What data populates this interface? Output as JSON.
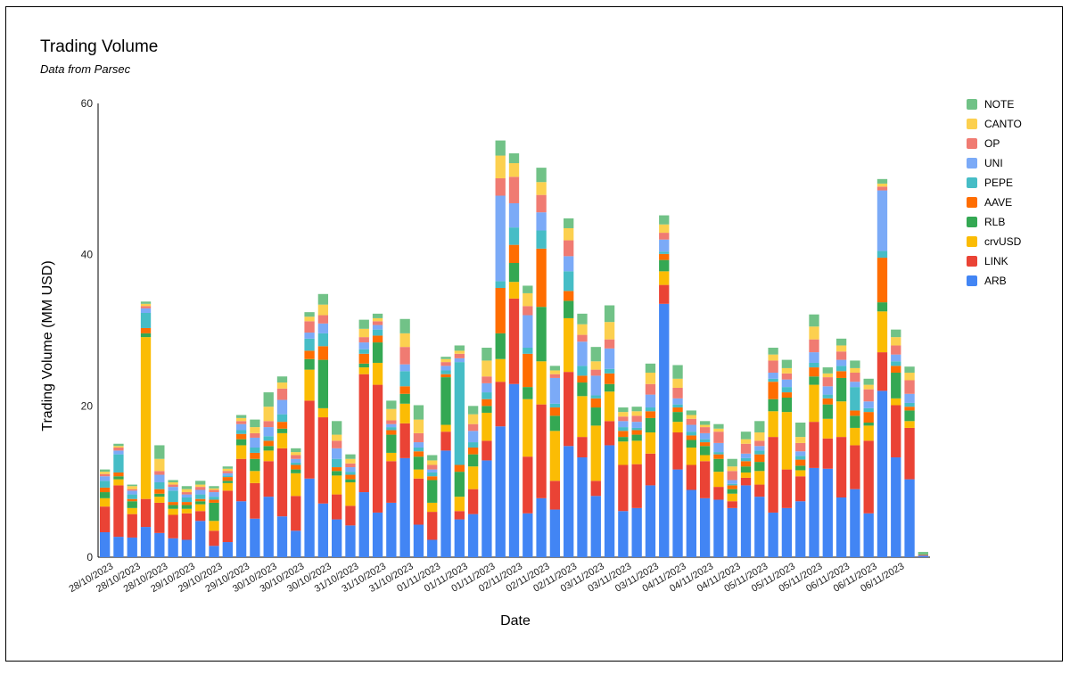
{
  "title": "Trading Volume",
  "subtitle": "Data from Parsec",
  "chart_data": {
    "type": "bar",
    "stacked": true,
    "title": "Trading Volume",
    "subtitle": "Data from Parsec",
    "xlabel": "Date",
    "ylabel": "Trading Volume (MM USD)",
    "ylim": [
      0,
      60
    ],
    "yticks": [
      0,
      20,
      40,
      60
    ],
    "grid": false,
    "legend_position": "right",
    "x_tick_labels": [
      "28/10/2023",
      "28/10/2023",
      "28/10/2023",
      "29/10/2023",
      "29/10/2023",
      "29/10/2023",
      "30/10/2023",
      "30/10/2023",
      "30/10/2023",
      "31/10/2023",
      "31/10/2023",
      "31/10/2023",
      "01/11/2023",
      "01/11/2023",
      "01/11/2023",
      "02/11/2023",
      "02/11/2023",
      "02/11/2023",
      "03/11/2023",
      "03/11/2023",
      "03/11/2023",
      "04/11/2023",
      "04/11/2023",
      "04/11/2023",
      "05/11/2023",
      "05/11/2023",
      "05/11/2023",
      "06/11/2023",
      "06/11/2023",
      "06/11/2023"
    ],
    "colors": {
      "ARB": "#4285f4",
      "LINK": "#ea4335",
      "crvUSD": "#fbbc04",
      "RLB": "#34a853",
      "AAVE": "#ff6d01",
      "PEPE": "#46bdc6",
      "UNI": "#7baaf7",
      "OP": "#f07b72",
      "CANTO": "#fcd04f",
      "NOTE": "#71c287"
    },
    "legend_order": [
      "NOTE",
      "CANTO",
      "OP",
      "UNI",
      "PEPE",
      "AAVE",
      "RLB",
      "crvUSD",
      "LINK",
      "ARB"
    ],
    "bar_count": 61,
    "series": [
      {
        "name": "ARB",
        "values": [
          3.3,
          2.7,
          2.6,
          4.0,
          3.2,
          2.5,
          2.3,
          4.8,
          1.5,
          2.0,
          7.4,
          5.1,
          8.0,
          5.4,
          3.5,
          10.4,
          7.1,
          5.0,
          4.2,
          8.6,
          5.9,
          7.2,
          13.1,
          4.3,
          2.3,
          14.1,
          5.0,
          5.7,
          12.8,
          17.3,
          22.9,
          5.8,
          7.8,
          6.3,
          14.7,
          13.2,
          8.1,
          14.8,
          6.1,
          6.5,
          9.5,
          33.5,
          11.6,
          8.9,
          7.8,
          7.6,
          6.5,
          9.5,
          8.0,
          5.9,
          6.5,
          7.4,
          11.8,
          11.7,
          7.9,
          9.0,
          5.8,
          22.0,
          13.2,
          10.3,
          0.2
        ]
      },
      {
        "name": "LINK",
        "values": [
          3.4,
          6.8,
          3.1,
          3.7,
          4.0,
          3.1,
          3.5,
          1.3,
          2.0,
          6.8,
          5.6,
          4.7,
          4.7,
          9.0,
          4.6,
          10.3,
          11.4,
          3.3,
          2.6,
          15.6,
          16.9,
          5.5,
          4.6,
          6.1,
          3.7,
          2.5,
          1.1,
          3.3,
          2.6,
          5.9,
          11.3,
          7.5,
          12.4,
          3.8,
          9.8,
          2.7,
          2.0,
          3.2,
          6.1,
          5.8,
          4.2,
          2.5,
          4.9,
          3.3,
          4.9,
          1.7,
          0.9,
          1.0,
          1.6,
          10.0,
          5.1,
          3.3,
          6.1,
          4.0,
          8.0,
          5.8,
          9.6,
          5.1,
          6.9,
          6.8,
          0.1
        ]
      },
      {
        "name": "crvUSD",
        "values": [
          1.1,
          0.8,
          0.8,
          21.4,
          0.8,
          0.8,
          0.6,
          0.9,
          1.3,
          1.0,
          1.8,
          1.6,
          1.4,
          2.0,
          3.0,
          4.1,
          1.2,
          2.5,
          3.1,
          0.9,
          2.9,
          1.1,
          2.6,
          1.2,
          1.2,
          0.9,
          1.9,
          3.0,
          3.7,
          3.0,
          2.2,
          7.6,
          5.7,
          6.6,
          7.1,
          5.4,
          7.3,
          3.9,
          3.1,
          3.1,
          2.8,
          1.8,
          1.4,
          2.3,
          0.8,
          2.0,
          1.0,
          0.7,
          1.8,
          3.4,
          7.6,
          0.8,
          4.9,
          2.6,
          4.7,
          2.3,
          2.0,
          5.4,
          0.9,
          0.9,
          0
        ]
      },
      {
        "name": "RLB",
        "values": [
          0.8,
          0.4,
          0.9,
          0.5,
          0.4,
          0.5,
          0.5,
          0.4,
          2.4,
          0.3,
          0.8,
          1.6,
          0.6,
          0.6,
          0.5,
          1.4,
          6.4,
          0.6,
          0.4,
          0.5,
          2.7,
          2.4,
          1.3,
          1.7,
          3.0,
          6.3,
          3.3,
          1.6,
          0.9,
          3.4,
          2.5,
          1.6,
          7.2,
          2.0,
          2.3,
          1.8,
          2.4,
          1.0,
          0.6,
          0.8,
          1.9,
          1.5,
          1.3,
          1.0,
          1.2,
          1.7,
          0.6,
          0.8,
          1.2,
          1.6,
          1.9,
          0.6,
          1.1,
          1.9,
          3.1,
          1.6,
          0.4,
          1.2,
          3.4,
          1.4,
          0
        ]
      },
      {
        "name": "AAVE",
        "values": [
          0.6,
          0.5,
          0.3,
          0.7,
          0.6,
          0.4,
          0.4,
          0.3,
          0.4,
          0.5,
          0.7,
          0.8,
          0.7,
          0.9,
          0.6,
          1.1,
          1.8,
          0.5,
          0.6,
          1.3,
          0.9,
          0.6,
          1.0,
          0.7,
          0.5,
          0.4,
          0.9,
          0.9,
          0.9,
          6.0,
          2.4,
          4.4,
          7.7,
          1.1,
          1.3,
          0.9,
          1.2,
          1.4,
          0.8,
          0.6,
          0.9,
          0.8,
          0.6,
          0.6,
          0.5,
          0.6,
          0.5,
          0.7,
          1.0,
          2.3,
          0.7,
          0.8,
          1.2,
          0.8,
          0.9,
          0.7,
          1.4,
          5.9,
          0.9,
          0.5,
          0
        ]
      },
      {
        "name": "PEPE",
        "values": [
          0.9,
          2.4,
          0.6,
          2.0,
          0.9,
          1.5,
          0.6,
          0.6,
          0.4,
          0.2,
          0.5,
          0.7,
          0.6,
          1.0,
          0.3,
          1.6,
          1.7,
          1.1,
          0.4,
          0.6,
          0.8,
          0.4,
          2.0,
          0.5,
          0.5,
          0.5,
          13.6,
          0.7,
          0.9,
          0.9,
          2.3,
          0.8,
          2.4,
          0.5,
          2.6,
          1.3,
          0.4,
          0.6,
          0.5,
          0.3,
          0.5,
          0.3,
          0.4,
          0.5,
          0.4,
          0.3,
          0.2,
          0.4,
          0.5,
          0.4,
          0.7,
          0.5,
          0.6,
          0.5,
          0.7,
          3.1,
          0.5,
          0.9,
          0.6,
          0.5,
          0
        ]
      },
      {
        "name": "UNI",
        "values": [
          0.6,
          0.5,
          0.5,
          0.6,
          1.0,
          0.5,
          0.4,
          0.6,
          0.6,
          0.3,
          0.8,
          1.3,
          1.2,
          1.9,
          0.5,
          0.8,
          1.3,
          1.4,
          0.6,
          0.9,
          0.6,
          0.4,
          0.9,
          0.7,
          0.4,
          0.6,
          0.5,
          1.5,
          1.2,
          11.3,
          3.2,
          4.3,
          2.4,
          3.4,
          2.0,
          3.2,
          2.6,
          2.7,
          0.8,
          0.8,
          1.7,
          1.6,
          0.8,
          0.9,
          0.8,
          1.2,
          0.5,
          0.6,
          0.6,
          0.8,
          1.0,
          0.6,
          1.4,
          1.1,
          0.8,
          0.7,
          0.9,
          8.0,
          0.9,
          1.2,
          0
        ]
      },
      {
        "name": "OP",
        "values": [
          0.3,
          0.4,
          0.2,
          0.3,
          0.5,
          0.3,
          0.3,
          0.4,
          0.3,
          0.3,
          0.4,
          0.6,
          0.8,
          1.5,
          0.5,
          1.5,
          1.1,
          1.0,
          0.5,
          0.7,
          0.5,
          0.5,
          2.3,
          1.2,
          0.6,
          0.5,
          0.6,
          0.9,
          0.9,
          2.3,
          3.5,
          1.2,
          2.3,
          0.5,
          2.1,
          0.9,
          0.8,
          1.2,
          0.6,
          0.8,
          1.4,
          0.9,
          1.4,
          0.8,
          0.8,
          1.5,
          1.2,
          1.3,
          0.7,
          1.6,
          0.8,
          1.1,
          1.7,
          1.2,
          1.1,
          1.2,
          1.6,
          0.5,
          1.2,
          1.8,
          0
        ]
      },
      {
        "name": "CANTO",
        "values": [
          0.3,
          0.2,
          0.4,
          0.3,
          1.6,
          0.3,
          0.4,
          0.3,
          0.2,
          0.3,
          0.4,
          0.8,
          1.9,
          0.8,
          0.4,
          0.6,
          1.4,
          0.8,
          0.6,
          1.1,
          0.4,
          1.5,
          1.8,
          1.8,
          0.6,
          0.4,
          0.4,
          1.3,
          2.1,
          3.0,
          1.8,
          1.7,
          1.7,
          0.5,
          1.6,
          1.4,
          1.1,
          2.3,
          0.6,
          0.6,
          1.5,
          1.1,
          1.2,
          0.5,
          0.3,
          0.4,
          0.6,
          0.6,
          1.1,
          0.8,
          0.7,
          0.8,
          1.7,
          0.5,
          0.8,
          0.6,
          0.6,
          0.4,
          1.1,
          1.0,
          0
        ]
      },
      {
        "name": "NOTE",
        "values": [
          0.3,
          0.3,
          0.2,
          0.3,
          1.8,
          0.3,
          0.4,
          0.5,
          0.3,
          0.3,
          0.4,
          1.0,
          1.9,
          0.8,
          0.5,
          0.6,
          1.4,
          1.8,
          0.6,
          1.2,
          0.6,
          1.1,
          1.9,
          1.9,
          0.7,
          0.3,
          0.7,
          1.1,
          1.7,
          2.0,
          1.3,
          1.0,
          1.9,
          0.6,
          1.3,
          1.4,
          1.9,
          2.2,
          0.6,
          0.6,
          1.2,
          1.2,
          1.8,
          0.6,
          0.5,
          0.6,
          1.0,
          1.0,
          1.5,
          0.9,
          1.1,
          1.9,
          1.6,
          0.8,
          0.9,
          1.0,
          0.8,
          0.6,
          1.0,
          0.8,
          0.4
        ]
      }
    ]
  }
}
